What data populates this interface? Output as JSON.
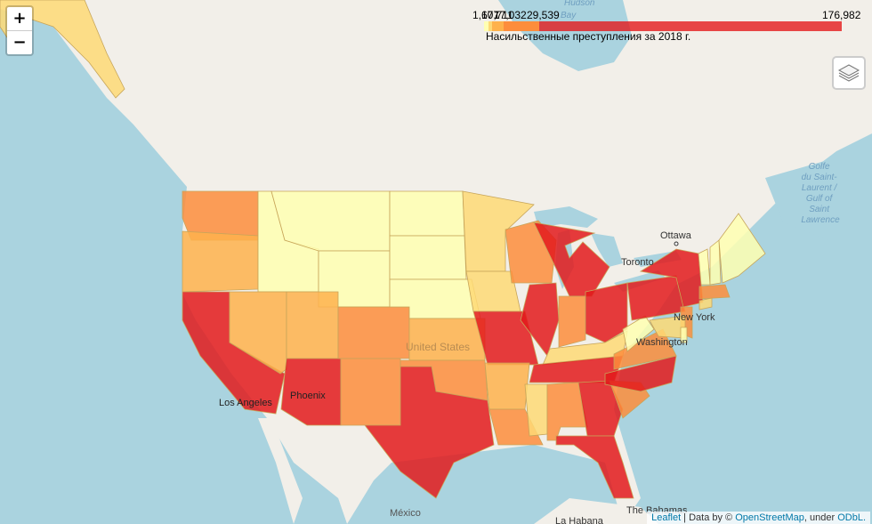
{
  "legend": {
    "ticks": [
      "1,677",
      "10,711",
      "17,032",
      "29,539",
      "176,982"
    ],
    "caption": "Насильственные преступления за 2018 г.",
    "colors": [
      "#ffffb2",
      "#fed976",
      "#feb24c",
      "#fd8d3c",
      "#e31a1c"
    ]
  },
  "zoom": {
    "in": "+",
    "out": "−"
  },
  "layers_control": "layers-icon",
  "attribution": {
    "leaflet": "Leaflet",
    "sep1": " | Data by © ",
    "osm": "OpenStreetMap",
    "sep2": ", under ",
    "odbl": "ODbL."
  },
  "labels": {
    "ottawa": "Ottawa",
    "toronto": "Toronto",
    "new_york": "New York",
    "washington": "Washington",
    "los_angeles": "Los Angeles",
    "phoenix": "Phoenix",
    "united_states": "United States",
    "mexico": "México",
    "la_habana": "La Habana",
    "the_bahamas": "The Bahamas",
    "hudson_bay": "Hudson\nBay",
    "golfe": "Golfe\ndu Saint-\nLaurent /\nGulf of\nSaint\nLawrence"
  }
}
